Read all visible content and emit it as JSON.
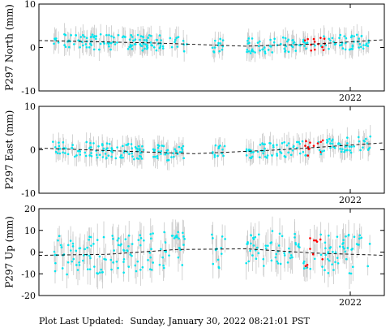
{
  "chart_data": [
    {
      "type": "scatter",
      "ylabel": "P297 North (mm)",
      "ylim": [
        -10,
        10
      ],
      "yticks": [
        -10,
        0,
        10
      ],
      "x_tick_label": "2022",
      "trend": [
        [
          0,
          1.6
        ],
        [
          0.35,
          1.0
        ],
        [
          0.6,
          0.3
        ],
        [
          0.8,
          0.8
        ],
        [
          1.0,
          1.8
        ]
      ],
      "cyan_color": "#00e5ee",
      "red_color": "#ff0000",
      "trend_color": "#000000",
      "errorbar_color": "#c8c8c8"
    },
    {
      "type": "scatter",
      "ylabel": "P297 East (mm)",
      "ylim": [
        -10,
        10
      ],
      "yticks": [
        -10,
        0,
        10
      ],
      "x_tick_label": "2022",
      "trend": [
        [
          0,
          0.4
        ],
        [
          0.45,
          -0.9
        ],
        [
          0.7,
          0.0
        ],
        [
          1.0,
          1.6
        ]
      ],
      "cyan_color": "#00e5ee",
      "red_color": "#ff0000",
      "trend_color": "#000000",
      "errorbar_color": "#c8c8c8"
    },
    {
      "type": "scatter",
      "ylabel": "P297 Up (mm)",
      "ylim": [
        -20,
        20
      ],
      "yticks": [
        -20,
        -10,
        0,
        10,
        20
      ],
      "x_tick_label": "2022",
      "trend": [
        [
          0,
          -1.5
        ],
        [
          0.2,
          -1.0
        ],
        [
          0.4,
          1.2
        ],
        [
          0.6,
          1.5
        ],
        [
          0.8,
          -0.5
        ],
        [
          1.0,
          -1.5
        ]
      ],
      "cyan_color": "#00e5ee",
      "red_color": "#ff0000",
      "trend_color": "#000000",
      "errorbar_color": "#c8c8c8"
    }
  ],
  "footer": {
    "label": "Plot Last Updated:",
    "value": "Sunday, January 30, 2022 08:21:01 PST"
  }
}
